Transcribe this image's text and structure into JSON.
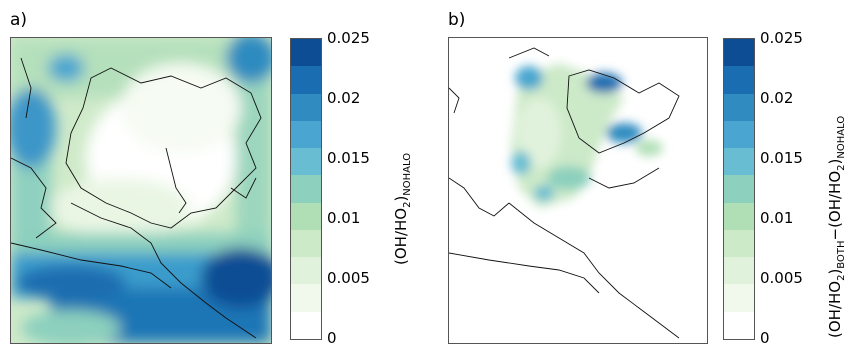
{
  "panels": [
    {
      "label": "a)"
    },
    {
      "label": "b)"
    }
  ],
  "colorbar": {
    "ticks": [
      "0",
      "0.005",
      "0.01",
      "0.015",
      "0.02",
      "0.025"
    ],
    "colors": [
      "#ffffff",
      "#f1f9ed",
      "#e1f2dc",
      "#cce9c8",
      "#b0dfb6",
      "#8cd0bd",
      "#69bdd2",
      "#4aa6d0",
      "#2f8bc0",
      "#1a6db0",
      "#0d4d94"
    ]
  },
  "colorbar_a": {
    "label_main": "(OH/HO",
    "label_sub1": "2",
    "label_tail": ")",
    "label_sub2": "NOHALO"
  },
  "colorbar_b": {
    "label_p1": "(OH/HO",
    "label_s1": "2",
    "label_p2": ")",
    "label_s2": "BOTH",
    "label_p3": "−(OH/HO",
    "label_s3": "2",
    "label_p4": ")",
    "label_s4": "NOHALO"
  }
}
